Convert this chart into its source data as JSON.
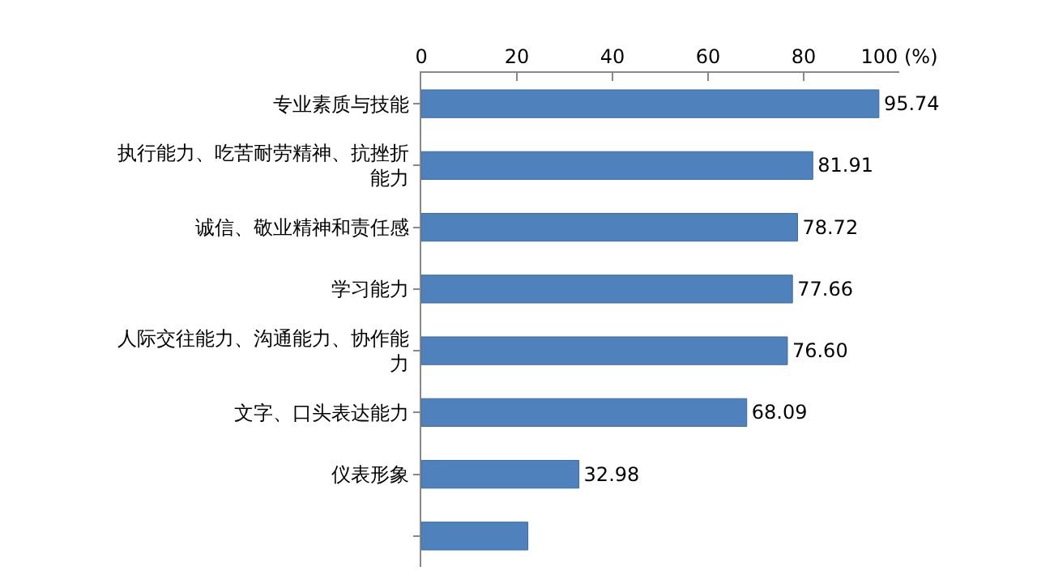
{
  "chart_data": {
    "type": "bar",
    "orientation": "horizontal",
    "categories": [
      "专业素质与技能",
      "执行能力、吃苦耐劳精神、抗挫折能力",
      "诚信、敬业精神和责任感",
      "学习能力",
      "人际交往能力、沟通能力、协作能力",
      "文字、口头表达能力",
      "仪表形象",
      null
    ],
    "values": [
      95.74,
      81.91,
      78.72,
      77.66,
      76.6,
      68.09,
      32.98,
      22.3
    ],
    "value_labels": [
      "95.74",
      "81.91",
      "78.72",
      "77.66",
      "76.60",
      "68.09",
      "32.98",
      null
    ],
    "color": "#4f81bd",
    "xlim": [
      0,
      100
    ],
    "xticks": [
      0,
      20,
      40,
      60,
      80,
      {
        "value": 100,
        "label": "100 (%)"
      }
    ]
  }
}
